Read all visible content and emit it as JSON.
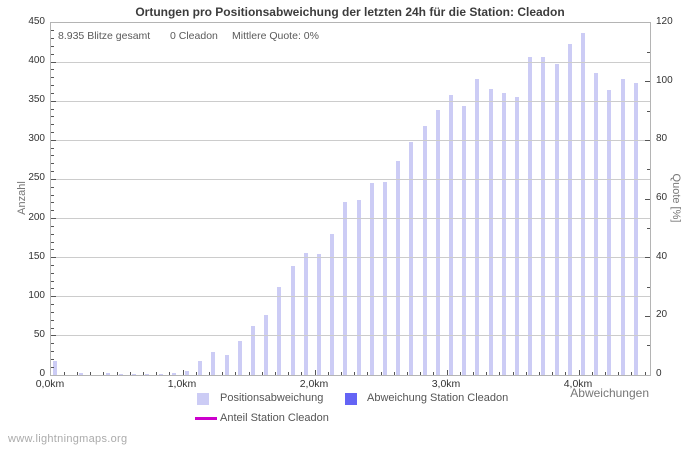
{
  "title": "Ortungen pro Positionsabweichung der letzten 24h für die Station: Cleadon",
  "stats": {
    "total": "8.935 Blitze gesamt",
    "station": "0 Cleadon",
    "mean_quote": "Mittlere Quote: 0%"
  },
  "footer": "www.lightningmaps.org",
  "colors": {
    "bar": "#ccccf5",
    "station_bar": "#6464f5",
    "quote_line": "#cc00cc",
    "grid": "#cccccc",
    "frame": "#b4b4b4",
    "tick": "#555555"
  },
  "legend": [
    {
      "label": "Positionsabweichung",
      "swatch": "square",
      "color": "#ccccf5"
    },
    {
      "label": "Abweichung Station Cleadon",
      "swatch": "square",
      "color": "#6464f5"
    },
    {
      "label": "Anteil Station Cleadon",
      "swatch": "line",
      "color": "#cc00cc"
    }
  ],
  "chart_data": {
    "type": "bar",
    "title": "Ortungen pro Positionsabweichung der letzten 24h für die Station: Cleadon",
    "xlabel": "Abweichungen",
    "ylabel_left": "Anzahl",
    "ylabel_right": "Quote [%]",
    "x_unit": "km",
    "x_bin_step_km": 0.1,
    "xlim_km": [
      0,
      4.54
    ],
    "ylim_left": [
      0,
      450
    ],
    "ylim_right": [
      0,
      120
    ],
    "y_left_ticks": [
      0,
      50,
      100,
      150,
      200,
      250,
      300,
      350,
      400,
      450
    ],
    "y_left_minor_step": 10,
    "y_right_ticks": [
      0,
      20,
      40,
      60,
      80,
      100,
      120
    ],
    "y_right_minor_step": 10,
    "x_ticks": [
      {
        "km": 0,
        "label": "0,0km"
      },
      {
        "km": 1,
        "label": "1,0km"
      },
      {
        "km": 2,
        "label": "2,0km"
      },
      {
        "km": 3,
        "label": "3,0km"
      },
      {
        "km": 4,
        "label": "4,0km"
      }
    ],
    "grid": true,
    "legend_position": "bottom",
    "x_km": [
      0.0,
      0.1,
      0.2,
      0.3,
      0.4,
      0.5,
      0.6,
      0.7,
      0.8,
      0.9,
      1.0,
      1.1,
      1.2,
      1.3,
      1.4,
      1.5,
      1.6,
      1.7,
      1.8,
      1.9,
      2.0,
      2.1,
      2.2,
      2.3,
      2.4,
      2.5,
      2.6,
      2.7,
      2.8,
      2.9,
      3.0,
      3.1,
      3.2,
      3.3,
      3.4,
      3.5,
      3.6,
      3.7,
      3.8,
      3.9,
      4.0,
      4.1,
      4.2,
      4.3,
      4.4
    ],
    "series": [
      {
        "name": "Positionsabweichung",
        "type": "bar",
        "axis": "left",
        "values": [
          18,
          0,
          2,
          0,
          2,
          1,
          1,
          1,
          1,
          2,
          5,
          18,
          30,
          26,
          44,
          63,
          77,
          112,
          140,
          156,
          155,
          180,
          221,
          224,
          245,
          247,
          274,
          298,
          318,
          339,
          358,
          344,
          379,
          366,
          361,
          356,
          406,
          407,
          397,
          423,
          437,
          386,
          364,
          378,
          373
        ]
      },
      {
        "name": "Abweichung Station Cleadon",
        "type": "bar",
        "axis": "left",
        "values": [
          0,
          0,
          0,
          0,
          0,
          0,
          0,
          0,
          0,
          0,
          0,
          0,
          0,
          0,
          0,
          0,
          0,
          0,
          0,
          0,
          0,
          0,
          0,
          0,
          0,
          0,
          0,
          0,
          0,
          0,
          0,
          0,
          0,
          0,
          0,
          0,
          0,
          0,
          0,
          0,
          0,
          0,
          0,
          0,
          0
        ]
      },
      {
        "name": "Anteil Station Cleadon",
        "type": "line",
        "axis": "right",
        "values": [
          0,
          0,
          0,
          0,
          0,
          0,
          0,
          0,
          0,
          0,
          0,
          0,
          0,
          0,
          0,
          0,
          0,
          0,
          0,
          0,
          0,
          0,
          0,
          0,
          0,
          0,
          0,
          0,
          0,
          0,
          0,
          0,
          0,
          0,
          0,
          0,
          0,
          0,
          0,
          0,
          0,
          0,
          0,
          0,
          0
        ]
      }
    ]
  }
}
